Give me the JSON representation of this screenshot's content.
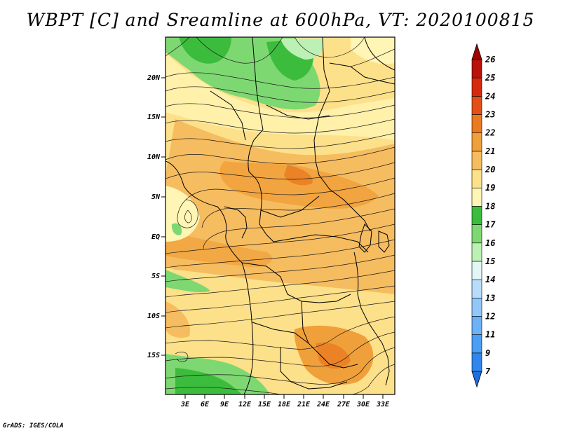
{
  "title": "WBPT [C] and Sreamline at 600hPa, VT: 2020100815",
  "credit": "GrADS: IGES/COLA",
  "map": {
    "lat_labels": [
      "20N",
      "15N",
      "10N",
      "5N",
      "EQ",
      "5S",
      "10S",
      "15S"
    ],
    "lon_labels": [
      "3E",
      "6E",
      "9E",
      "12E",
      "15E",
      "18E",
      "21E",
      "24E",
      "27E",
      "30E",
      "33E"
    ]
  },
  "colorbar": {
    "levels": [
      "7",
      "9",
      "11",
      "12",
      "13",
      "14",
      "15",
      "16",
      "17",
      "18",
      "19",
      "20",
      "21",
      "22",
      "23",
      "24",
      "25",
      "26"
    ],
    "colors": [
      "#1e6ee0",
      "#2e86ee",
      "#4a9ef4",
      "#6cb2f6",
      "#92c8f8",
      "#b8dcfa",
      "#e2f6f6",
      "#bdf0b4",
      "#7ed872",
      "#3cbc3c",
      "#fff5b4",
      "#fde08a",
      "#f6bc60",
      "#f0a03a",
      "#ea7a20",
      "#e25016",
      "#d62a0e",
      "#b8120a",
      "#a00000"
    ]
  }
}
